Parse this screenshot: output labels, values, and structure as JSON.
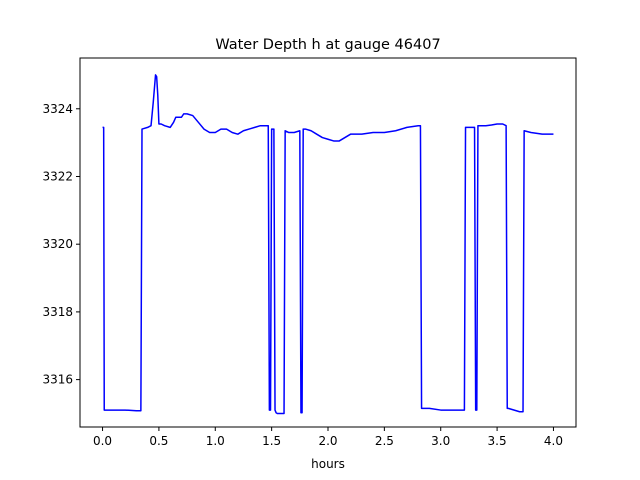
{
  "chart_data": {
    "type": "line",
    "title": "Water Depth h at gauge 46407",
    "xlabel": "hours",
    "ylabel": "",
    "xlim": [
      -0.2,
      4.2
    ],
    "ylim": [
      3314.6,
      3325.5
    ],
    "xticks": [
      0.0,
      0.5,
      1.0,
      1.5,
      2.0,
      2.5,
      3.0,
      3.5,
      4.0
    ],
    "xtick_labels": [
      "0.0",
      "0.5",
      "1.0",
      "1.5",
      "2.0",
      "2.5",
      "3.0",
      "3.5",
      "4.0"
    ],
    "yticks": [
      3316,
      3318,
      3320,
      3322,
      3324
    ],
    "ytick_labels": [
      "3316",
      "3318",
      "3320",
      "3322",
      "3324"
    ],
    "grid": false,
    "series": [
      {
        "color": "#0000ff",
        "x": [
          0.0,
          0.01,
          0.015,
          0.1,
          0.2,
          0.3,
          0.33,
          0.34,
          0.35,
          0.4,
          0.43,
          0.45,
          0.47,
          0.48,
          0.49,
          0.5,
          0.52,
          0.55,
          0.6,
          0.63,
          0.65,
          0.68,
          0.7,
          0.72,
          0.75,
          0.8,
          0.85,
          0.9,
          0.95,
          1.0,
          1.05,
          1.1,
          1.15,
          1.2,
          1.25,
          1.3,
          1.35,
          1.4,
          1.45,
          1.47,
          1.48,
          1.49,
          1.5,
          1.51,
          1.52,
          1.53,
          1.54,
          1.55,
          1.6,
          1.61,
          1.62,
          1.65,
          1.7,
          1.75,
          1.76,
          1.77,
          1.78,
          1.79,
          1.8,
          1.85,
          1.9,
          1.95,
          2.0,
          2.05,
          2.1,
          2.15,
          2.2,
          2.3,
          2.4,
          2.5,
          2.6,
          2.7,
          2.8,
          2.82,
          2.83,
          2.9,
          3.0,
          3.1,
          3.2,
          3.21,
          3.22,
          3.3,
          3.31,
          3.32,
          3.33,
          3.4,
          3.45,
          3.5,
          3.55,
          3.58,
          3.59,
          3.6,
          3.7,
          3.73,
          3.74,
          3.8,
          3.9,
          4.0
        ],
        "values": [
          3323.45,
          3323.45,
          3315.1,
          3315.1,
          3315.1,
          3315.08,
          3315.08,
          3315.08,
          3323.4,
          3323.45,
          3323.5,
          3324.2,
          3325.0,
          3324.95,
          3324.4,
          3323.55,
          3323.55,
          3323.5,
          3323.45,
          3323.6,
          3323.75,
          3323.75,
          3323.75,
          3323.85,
          3323.85,
          3323.8,
          3323.6,
          3323.4,
          3323.3,
          3323.3,
          3323.4,
          3323.4,
          3323.3,
          3323.25,
          3323.35,
          3323.4,
          3323.45,
          3323.5,
          3323.5,
          3323.5,
          3315.1,
          3315.1,
          3323.4,
          3323.4,
          3323.4,
          3315.1,
          3315.02,
          3315.0,
          3315.0,
          3315.0,
          3323.35,
          3323.3,
          3323.3,
          3323.35,
          3315.02,
          3315.02,
          3323.4,
          3323.4,
          3323.4,
          3323.35,
          3323.25,
          3323.15,
          3323.1,
          3323.05,
          3323.05,
          3323.15,
          3323.25,
          3323.25,
          3323.3,
          3323.3,
          3323.35,
          3323.45,
          3323.5,
          3323.5,
          3315.15,
          3315.15,
          3315.1,
          3315.1,
          3315.1,
          3315.1,
          3323.45,
          3323.45,
          3315.1,
          3315.1,
          3323.5,
          3323.5,
          3323.52,
          3323.55,
          3323.55,
          3323.5,
          3315.15,
          3315.15,
          3315.05,
          3315.05,
          3323.35,
          3323.3,
          3323.25,
          3323.25
        ]
      }
    ]
  }
}
